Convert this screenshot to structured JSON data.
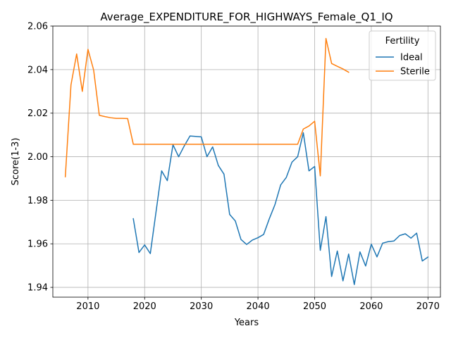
{
  "chart_data": {
    "type": "line",
    "title": "Average_EXPENDITURE_FOR_HIGHWAYS_Female_Q1_IQ",
    "xlabel": "Years",
    "ylabel": "Score(1-3)",
    "xlim": [
      2003.8,
      2072.2
    ],
    "ylim": [
      1.9355,
      2.06
    ],
    "xticks": [
      2010,
      2020,
      2030,
      2040,
      2050,
      2060,
      2070
    ],
    "yticks": [
      1.94,
      1.96,
      1.98,
      2.0,
      2.02,
      2.04,
      2.06
    ],
    "xtick_labels": [
      "2010",
      "2020",
      "2030",
      "2040",
      "2050",
      "2060",
      "2070"
    ],
    "ytick_labels": [
      "1.94",
      "1.96",
      "1.98",
      "2.00",
      "2.02",
      "2.04",
      "2.06"
    ],
    "grid": true,
    "legend": {
      "title": "Fertility",
      "position": "top-right"
    },
    "series": [
      {
        "name": "Ideal",
        "color": "#1f77b4",
        "x": [
          2018,
          2019,
          2020,
          2021,
          2022,
          2023,
          2024,
          2025,
          2026,
          2027,
          2028,
          2029,
          2030,
          2031,
          2032,
          2033,
          2034,
          2035,
          2036,
          2037,
          2038,
          2039,
          2040,
          2041,
          2042,
          2043,
          2044,
          2045,
          2046,
          2047,
          2048,
          2049,
          2050,
          2051,
          2052,
          2053,
          2054,
          2055,
          2056,
          2057,
          2058,
          2059,
          2060,
          2061,
          2062,
          2063,
          2064,
          2065,
          2066,
          2067,
          2068,
          2069,
          2070
        ],
        "y": [
          1.9715,
          1.956,
          1.9595,
          1.9555,
          1.9745,
          1.9935,
          1.989,
          2.0055,
          2.0,
          2.005,
          2.0095,
          2.0093,
          2.0091,
          2.0,
          2.0045,
          1.996,
          1.992,
          1.9735,
          1.9705,
          1.962,
          1.9597,
          1.9617,
          1.9628,
          1.9643,
          1.9715,
          1.978,
          1.987,
          1.9905,
          1.9975,
          2.0,
          2.011,
          1.9935,
          1.9955,
          1.957,
          1.9725,
          1.945,
          1.9567,
          1.943,
          1.9553,
          1.9413,
          1.9563,
          1.9498,
          1.9598,
          1.954,
          1.9603,
          1.961,
          1.9613,
          1.9638,
          1.9646,
          1.9626,
          1.9649,
          1.9521,
          1.9539
        ]
      },
      {
        "name": "Sterile",
        "color": "#ff7f0e",
        "x": [
          2006,
          2007,
          2008,
          2009,
          2010,
          2011,
          2012,
          2013,
          2014,
          2015,
          2016,
          2017,
          2018,
          2019,
          2020,
          2021,
          2022,
          2023,
          2024,
          2025,
          2026,
          2027,
          2028,
          2029,
          2030,
          2031,
          2032,
          2033,
          2034,
          2035,
          2036,
          2037,
          2038,
          2039,
          2040,
          2041,
          2042,
          2043,
          2044,
          2045,
          2046,
          2047,
          2048,
          2049,
          2050,
          2051,
          2052,
          2053,
          2054,
          2055,
          2056
        ],
        "y": [
          1.9908,
          2.033,
          2.0472,
          2.03,
          2.0493,
          2.0398,
          2.019,
          2.0184,
          2.0179,
          2.0176,
          2.0176,
          2.0175,
          2.0057,
          2.0057,
          2.0057,
          2.0057,
          2.0057,
          2.0057,
          2.0057,
          2.0057,
          2.0057,
          2.0057,
          2.0057,
          2.0057,
          2.0057,
          2.0057,
          2.0057,
          2.0057,
          2.0057,
          2.0057,
          2.0057,
          2.0057,
          2.0057,
          2.0057,
          2.0057,
          2.0057,
          2.0057,
          2.0057,
          2.0057,
          2.0057,
          2.0057,
          2.0057,
          2.0127,
          2.0141,
          2.0163,
          1.9912,
          2.0543,
          2.0428,
          2.0415,
          2.0403,
          2.0388
        ]
      }
    ]
  }
}
